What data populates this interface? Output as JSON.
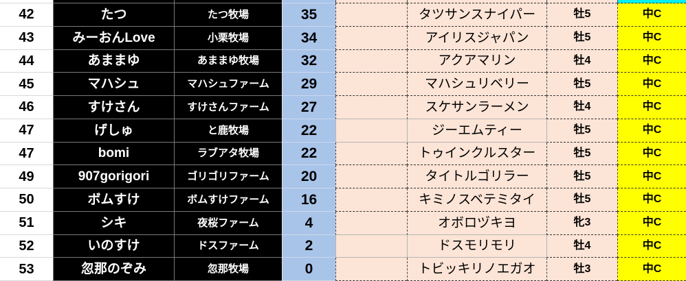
{
  "colors": {
    "points_bg": "#A9C4E9",
    "row_bg": "#FCE4D6",
    "grade_bg": "#FFFF00",
    "prev_grade_bg": "#00F0F0"
  },
  "table": {
    "rows": [
      {
        "rank": "42",
        "player": "たつ",
        "farm": "たつ牧場",
        "points": "35",
        "horse": "タツサンスナイパー",
        "sex_age": "牡5",
        "grade": "中C",
        "selected": false
      },
      {
        "rank": "43",
        "player": "みーおんLove",
        "farm": "小栗牧場",
        "points": "34",
        "horse": "アイリスジャパン",
        "sex_age": "牡5",
        "grade": "中C",
        "selected": false
      },
      {
        "rank": "44",
        "player": "あままゆ",
        "farm": "あままゆ牧場",
        "points": "32",
        "horse": "アクアマリン",
        "sex_age": "牡4",
        "grade": "中C",
        "selected": false
      },
      {
        "rank": "45",
        "player": "マハシュ",
        "farm": "マハシュファーム",
        "points": "29",
        "horse": "マハシュリベリー",
        "sex_age": "牡5",
        "grade": "中C",
        "selected": false
      },
      {
        "rank": "46",
        "player": "すけさん",
        "farm": "すけさんファーム",
        "points": "27",
        "horse": "スケサンラーメン",
        "sex_age": "牡4",
        "grade": "中C",
        "selected": false
      },
      {
        "rank": "47",
        "player": "げしゅ",
        "farm": "と鹿牧場",
        "points": "22",
        "horse": "ジーエムティー",
        "sex_age": "牡5",
        "grade": "中C",
        "selected": true
      },
      {
        "rank": "47",
        "player": "bomi",
        "farm": "ラブアタ牧場",
        "points": "22",
        "horse": "トゥインクルスター",
        "sex_age": "牡5",
        "grade": "中C",
        "selected": false
      },
      {
        "rank": "49",
        "player": "907gorigori",
        "farm": "ゴリゴリファーム",
        "points": "20",
        "horse": "タイトルゴリラー",
        "sex_age": "牡5",
        "grade": "中C",
        "selected": false
      },
      {
        "rank": "50",
        "player": "ボムすけ",
        "farm": "ボムすけファーム",
        "points": "16",
        "horse": "キミノスベテミタイ",
        "sex_age": "牡5",
        "grade": "中C",
        "selected": false
      },
      {
        "rank": "51",
        "player": "シキ",
        "farm": "夜桜ファーム",
        "points": "4",
        "horse": "オボロヅキヨ",
        "sex_age": "牝3",
        "grade": "中C",
        "selected": false
      },
      {
        "rank": "52",
        "player": "いのすけ",
        "farm": "ドスファーム",
        "points": "2",
        "horse": "ドスモリモリ",
        "sex_age": "牡4",
        "grade": "中C",
        "selected": true
      },
      {
        "rank": "53",
        "player": "忽那のぞみ",
        "farm": "忽那牧場",
        "points": "0",
        "horse": "トビッキリノエガオ",
        "sex_age": "牡3",
        "grade": "中C",
        "selected": false
      }
    ]
  }
}
